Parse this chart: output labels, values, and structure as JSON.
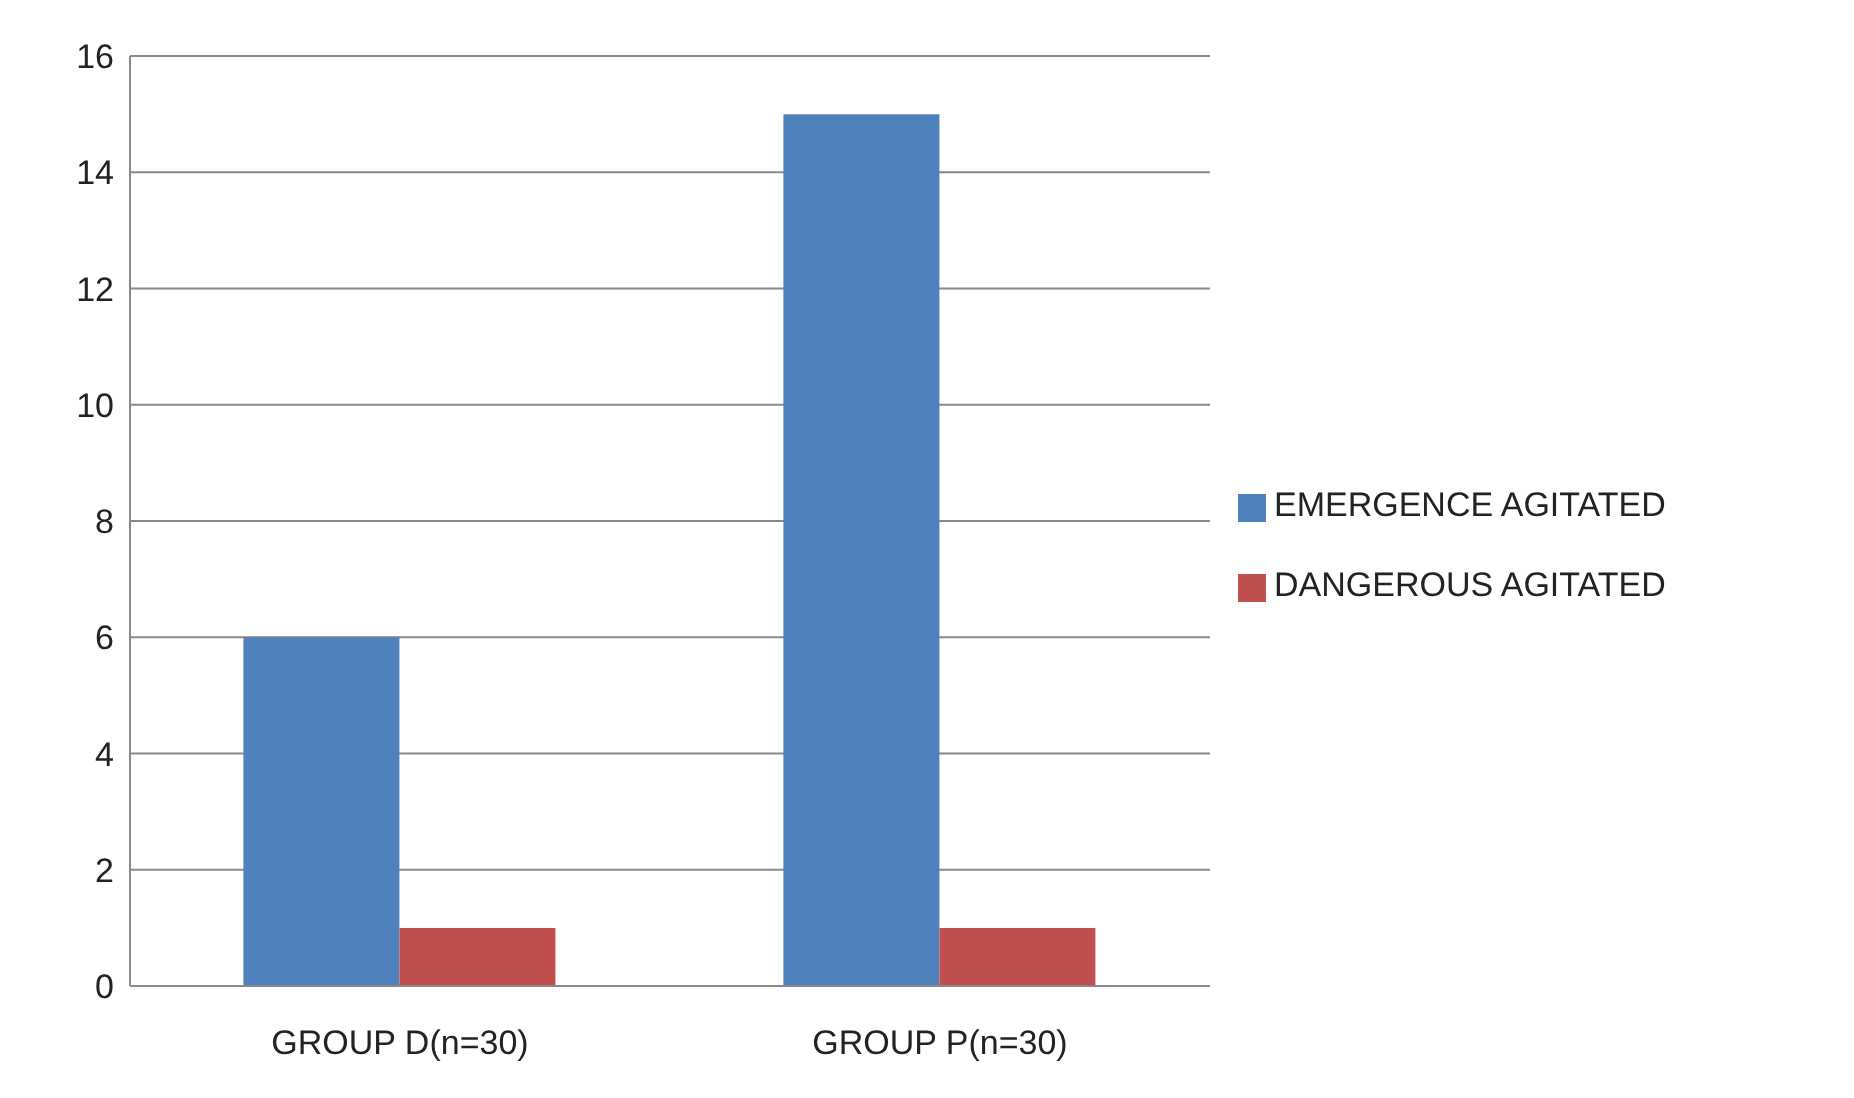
{
  "chart_data": {
    "type": "bar",
    "categories": [
      "GROUP D(n=30)",
      "GROUP P(n=30)"
    ],
    "series": [
      {
        "name": "EMERGENCE AGITATED",
        "color": "#4f81bd",
        "values": [
          6,
          15
        ]
      },
      {
        "name": "DANGEROUS AGITATED",
        "color": "#c0504d",
        "values": [
          1,
          1
        ]
      }
    ],
    "ylim": [
      0,
      16
    ],
    "yticks": [
      0,
      2,
      4,
      6,
      8,
      10,
      12,
      14,
      16
    ],
    "grid": "y",
    "legend": "right"
  }
}
